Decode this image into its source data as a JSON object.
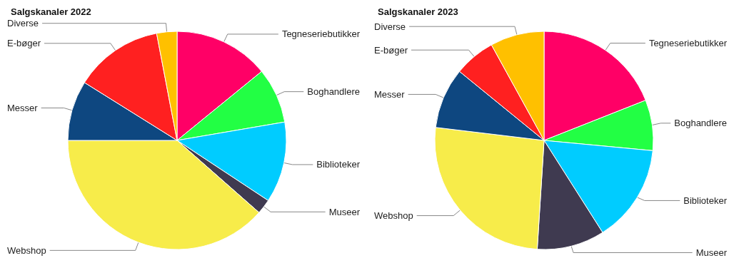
{
  "chart_data": [
    {
      "type": "pie",
      "title": "Salgskanaler 2022",
      "categories": [
        "Tegneseriebutikker",
        "Boghandlere",
        "Biblioteker",
        "Museer",
        "Webshop",
        "Messer",
        "E-bøger",
        "Diverse"
      ],
      "values": [
        14.1,
        8.2,
        12,
        2.2,
        38.5,
        8.9,
        13.1,
        3
      ],
      "colors": [
        "#ff0066",
        "#22ff44",
        "#00ccff",
        "#3f3a50",
        "#f7ec4a",
        "#0e4780",
        "#ff2020",
        "#ffc000"
      ]
    },
    {
      "type": "pie",
      "title": "Salgskanaler 2023",
      "categories": [
        "Tegneseriebutikker",
        "Boghandlere",
        "Biblioteker",
        "Museer",
        "Webshop",
        "Messer",
        "E-bøger",
        "Diverse"
      ],
      "values": [
        19,
        7.5,
        14.5,
        10,
        25.9,
        9,
        6.1,
        8
      ],
      "colors": [
        "#ff0066",
        "#22ff44",
        "#00ccff",
        "#3f3a50",
        "#f7ec4a",
        "#0e4780",
        "#ff2020",
        "#ffc000"
      ]
    }
  ]
}
